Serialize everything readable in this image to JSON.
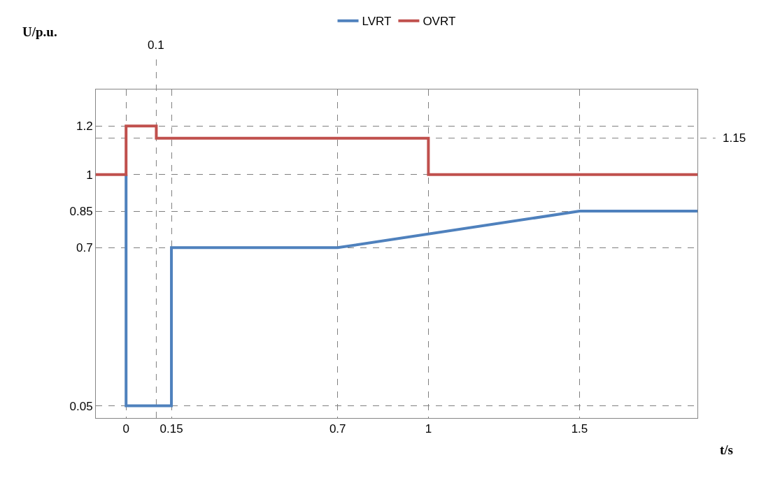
{
  "chart_data": {
    "type": "line",
    "xlabel": "t/s",
    "ylabel": "U/p.u.",
    "series": [
      {
        "name": "LVRT",
        "color": "#4f81bd",
        "x": [
          0,
          0,
          0.15,
          0.15,
          0.7,
          1.5,
          1.89
        ],
        "values": [
          1,
          0.05,
          0.05,
          0.7,
          0.7,
          0.85,
          0.85
        ]
      },
      {
        "name": "OVRT",
        "color": "#c0504d",
        "x": [
          -0.1,
          0,
          0,
          0.1,
          0.1,
          1,
          1,
          1.89
        ],
        "values": [
          1,
          1,
          1.2,
          1.2,
          1.15,
          1.15,
          1,
          1
        ]
      }
    ],
    "xlim": [
      -0.1,
      1.89
    ],
    "xticks": [
      0,
      0.15,
      0.7,
      1,
      1.5
    ],
    "ylim": [
      0,
      1.35
    ],
    "yticks": [
      0.05,
      0.7,
      0.85,
      1,
      1.2
    ],
    "ref_lines": [
      {
        "axis": "x",
        "value": 0.1,
        "label": "0.1",
        "color": "#808080",
        "line_style": "dashed"
      },
      {
        "axis": "y",
        "value": 1.15,
        "label": "1.15",
        "color": "#808080",
        "line_style": "dashed"
      }
    ],
    "grid": true,
    "legend": "top",
    "marker": "none",
    "line_style": "solid"
  }
}
